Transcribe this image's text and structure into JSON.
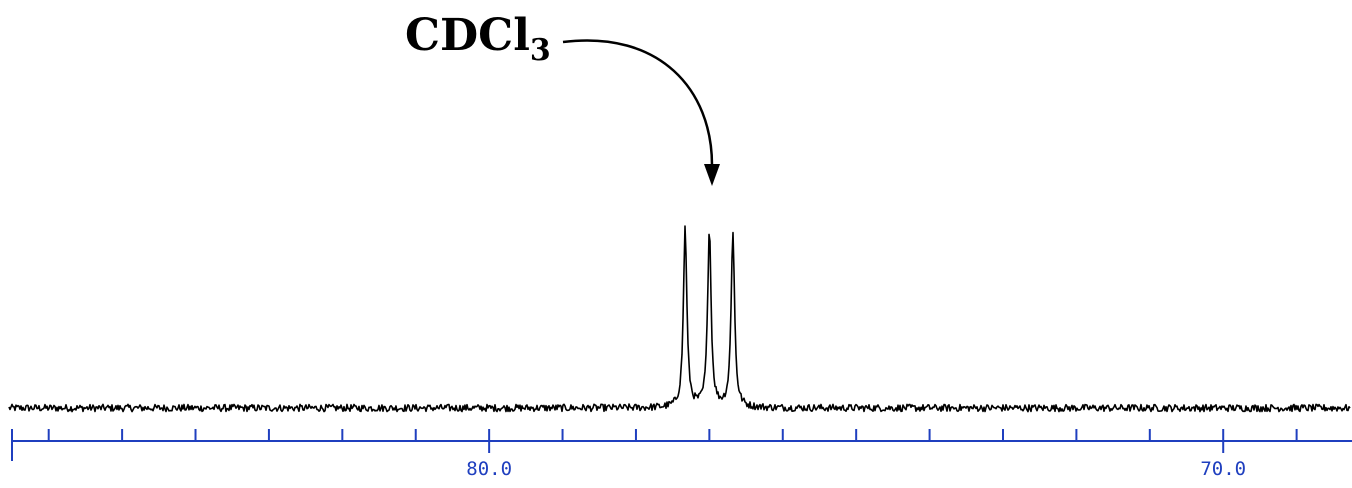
{
  "chart_data": {
    "type": "line",
    "xlabel": "",
    "ylabel": "",
    "x_axis": {
      "reversed": true,
      "range": [
        86.5,
        68.3
      ],
      "major_ticks": [
        80.0,
        70.0
      ],
      "major_tick_labels": [
        "80.0",
        "70.0"
      ],
      "minor_step": 1.0,
      "color": "#1f3fbf"
    },
    "peaks": [
      {
        "ppm": 77.33,
        "height": 1.0
      },
      {
        "ppm": 77.0,
        "height": 1.0
      },
      {
        "ppm": 76.68,
        "height": 0.98
      }
    ],
    "baseline_noise": 0.02,
    "annotation": {
      "text": "CDCl",
      "subscript": "3",
      "points_to_ppm": 77.0
    },
    "grid": false,
    "trace_color": "#000000"
  }
}
